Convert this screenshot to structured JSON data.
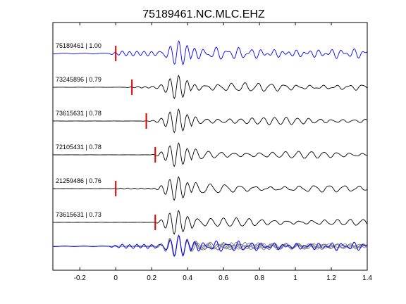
{
  "chart_data": {
    "type": "line",
    "title": "75189461.NC.MLC.EHZ",
    "xlabel": "",
    "ylabel": "",
    "xlim": [
      -0.35,
      1.4
    ],
    "x_ticks": [
      -0.2,
      0,
      0.2,
      0.4,
      0.6,
      0.8,
      1,
      1.2,
      1.4
    ],
    "x_tick_labels": [
      "-0.2",
      "0",
      "0.2",
      "0.4",
      "0.6",
      "0.8",
      "1",
      "1.2",
      "1.4"
    ],
    "grid": false,
    "series": [
      {
        "label": "75189461 | 1.00",
        "color": "#0000ff",
        "pick": 0.0,
        "seed": 1,
        "noise": 0.55
      },
      {
        "label": "73245896 | 0.79",
        "color": "#000000",
        "pick": 0.09,
        "seed": 2,
        "noise": 0.18
      },
      {
        "label": "73615631 | 0.78",
        "color": "#000000",
        "pick": 0.17,
        "seed": 3,
        "noise": 0.08
      },
      {
        "label": "72105431 | 0.78",
        "color": "#000000",
        "pick": 0.22,
        "seed": 4,
        "noise": 0.08
      },
      {
        "label": "21259486 | 0.76",
        "color": "#000000",
        "pick": 0.0,
        "seed": 5,
        "noise": 0.12
      },
      {
        "label": "73615631 | 0.73",
        "color": "#000000",
        "pick": 0.22,
        "seed": 6,
        "noise": 0.1
      }
    ],
    "stack": {
      "reference_color": "#0000ff",
      "overlay_color": "#808080"
    },
    "pick_color": "#dd0000"
  }
}
